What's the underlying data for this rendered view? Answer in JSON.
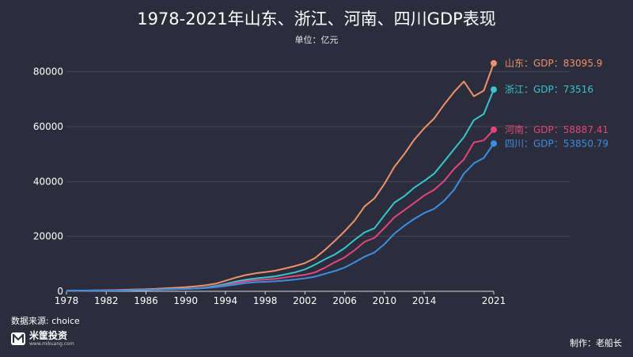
{
  "header": {
    "title": "1978-2021年山东、浙江、河南、四川GDP表现",
    "subtitle": "单位：亿元"
  },
  "footer": {
    "source": "数据来源: choice",
    "brand_name": "米筐投资",
    "brand_url": "www.mikuang.com",
    "credit": "制作：老船长"
  },
  "chart_data": {
    "type": "line",
    "title": "1978-2021年山东、浙江、河南、四川GDP表现",
    "subtitle": "单位：亿元",
    "xlim": [
      1978,
      2021
    ],
    "ylim": [
      0,
      90000
    ],
    "x_ticks": [
      "1978",
      "1982",
      "1986",
      "1990",
      "1994",
      "1998",
      "2002",
      "2006",
      "2010",
      "2014",
      "2021"
    ],
    "x_tick_values": [
      1978,
      1982,
      1986,
      1990,
      1994,
      1998,
      2002,
      2006,
      2010,
      2014,
      2021
    ],
    "y_ticks": [
      "0",
      "20000",
      "40000",
      "60000",
      "80000"
    ],
    "y_tick_values": [
      0,
      20000,
      40000,
      60000,
      80000
    ],
    "grid": true,
    "x": [
      1978,
      1979,
      1980,
      1981,
      1982,
      1983,
      1984,
      1985,
      1986,
      1987,
      1988,
      1989,
      1990,
      1991,
      1992,
      1993,
      1994,
      1995,
      1996,
      1997,
      1998,
      1999,
      2000,
      2001,
      2002,
      2003,
      2004,
      2005,
      2006,
      2007,
      2008,
      2009,
      2010,
      2011,
      2012,
      2013,
      2014,
      2015,
      2016,
      2017,
      2018,
      2019,
      2020,
      2021
    ],
    "series": [
      {
        "name": "山东",
        "label": "山东：GDP：83095.9",
        "color": "#f0916a",
        "values": [
          225,
          250,
          292,
          346,
          395,
          459,
          581,
          680,
          742,
          892,
          1117,
          1293,
          1511,
          1810,
          2196,
          2770,
          3844,
          4953,
          5883,
          6537,
          7021,
          7493,
          8337,
          9195,
          10275,
          12078,
          15022,
          18367,
          21900,
          25776,
          30933,
          33897,
          39170,
          45362,
          50013,
          55230,
          59427,
          63002,
          68024,
          72634,
          76470,
          71068,
          73129,
          83095.9
        ]
      },
      {
        "name": "浙江",
        "label": "浙江：GDP：73516",
        "color": "#36c6cf",
        "values": [
          124,
          157,
          180,
          204,
          234,
          257,
          323,
          429,
          502,
          606,
          770,
          849,
          904,
          1089,
          1376,
          1926,
          2689,
          3558,
          4189,
          4686,
          5053,
          5444,
          6141,
          6898,
          8004,
          9705,
          11649,
          13418,
          15742,
          18754,
          21463,
          22990,
          27722,
          32319,
          34665,
          37757,
          40173,
          42886,
          47251,
          51768,
          56197,
          62352,
          64613,
          73516
        ]
      },
      {
        "name": "河南",
        "label": "河南：GDP：58887.41",
        "color": "#e4457a",
        "values": [
          162,
          190,
          229,
          249,
          263,
          327,
          370,
          451,
          502,
          609,
          749,
          851,
          935,
          1045,
          1279,
          1660,
          2217,
          2988,
          3635,
          4041,
          4308,
          4517,
          5053,
          5533,
          6035,
          6868,
          8554,
          10587,
          12363,
          15012,
          18018,
          19480,
          23092,
          26931,
          29599,
          32191,
          34938,
          37002,
          40160,
          44553,
          48056,
          54259,
          54997,
          58887.41
        ]
      },
      {
        "name": "四川",
        "label": "四川：GDP：53850.79",
        "color": "#3d8ee0",
        "values": [
          185,
          221,
          249,
          281,
          312,
          342,
          387,
          458,
          512,
          581,
          731,
          818,
          890,
          1016,
          1177,
          1487,
          1930,
          2443,
          2986,
          3320,
          3474,
          3649,
          3928,
          4293,
          4725,
          5333,
          6380,
          7385,
          8690,
          10562,
          12601,
          14151,
          17185,
          21027,
          23873,
          26392,
          28537,
          30053,
          32935,
          36980,
          42902,
          46616,
          48599,
          53850.79
        ]
      }
    ]
  }
}
